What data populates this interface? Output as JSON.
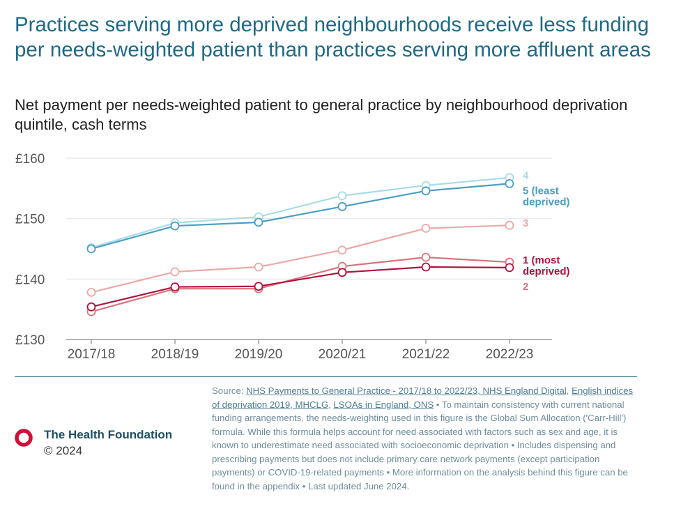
{
  "title": "Practices serving more deprived neighbourhoods receive less funding per needs-weighted patient than practices serving more affluent areas",
  "subtitle": "Net payment per needs-weighted patient to general practice by neighbourhood deprivation quintile, cash terms",
  "chart_data": {
    "type": "line",
    "categories": [
      "2017/18",
      "2018/19",
      "2019/20",
      "2020/21",
      "2021/22",
      "2022/23"
    ],
    "ylim": [
      130,
      160
    ],
    "yticks": [
      130,
      140,
      150,
      160
    ],
    "ytick_labels": [
      "£130",
      "£140",
      "£150",
      "£160"
    ],
    "grid": true,
    "series": [
      {
        "name": "4",
        "label_lines": [
          "4"
        ],
        "color": "#a8dce8",
        "values": [
          145.2,
          149.3,
          150.3,
          153.8,
          155.5,
          156.8
        ]
      },
      {
        "name": "5 (least deprived)",
        "label_lines": [
          "5 (least",
          "deprived)"
        ],
        "color": "#4a9ec3",
        "values": [
          145.0,
          148.8,
          149.4,
          152.0,
          154.6,
          155.8
        ]
      },
      {
        "name": "3",
        "label_lines": [
          "3"
        ],
        "color": "#eda8a6",
        "values": [
          137.8,
          141.2,
          142.0,
          144.8,
          148.4,
          148.9
        ]
      },
      {
        "name": "2",
        "label_lines": [
          "2"
        ],
        "color": "#d9737b",
        "values": [
          134.6,
          138.4,
          138.4,
          142.1,
          143.6,
          142.8
        ]
      },
      {
        "name": "1 (most deprived)",
        "label_lines": [
          "1 (most",
          "deprived)"
        ],
        "color": "#b0123e",
        "values": [
          135.4,
          138.7,
          138.8,
          141.1,
          142.0,
          141.9
        ]
      }
    ]
  },
  "footer": {
    "org": "The Health Foundation",
    "copyright": "© 2024",
    "source_prefix": "Source: ",
    "link1": "NHS Payments to General Practice - 2017/18 to 2022/23, NHS England Digital",
    "sep1": ", ",
    "link2": "English indices of deprivation 2019, MHCLG",
    "sep2": ", ",
    "link3": "LSOAs in England, ONS",
    "notes": " • To maintain consistency with current national funding arrangements, the needs-weighting used in this figure is the Global Sum Allocation ('Carr-Hill') formula. While this formula helps account for need associated with factors such as sex and age, it is known to underestimate need associated with socioeconomic deprivation • Includes dispensing and prescribing payments but does not include primary care network payments (except participation payments) or COVID-19-related payments • More information on the analysis behind this figure can be found in the appendix • Last updated June 2024."
  }
}
